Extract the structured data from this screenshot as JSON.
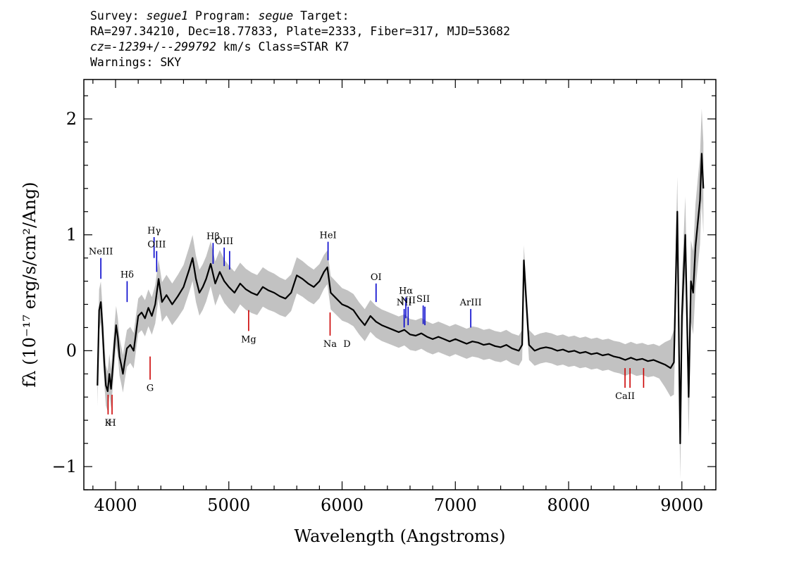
{
  "header": {
    "survey_label": "Survey:",
    "survey": "segue1",
    "program_label": "Program:",
    "program": "segue",
    "target_label": "Target:",
    "line2": "RA=297.34210, Dec=18.77833, Plate=2333, Fiber=317, MJD=53682",
    "cz_label": "cz=",
    "cz_value": "-1239",
    "cz_pm": "+/-",
    "cz_err": "-299792",
    "cz_units": " km/s Class=STAR K7",
    "warnings": "Warnings: SKY"
  },
  "chart_data": {
    "type": "line",
    "title": "",
    "xlabel": "Wavelength (Angstroms)",
    "ylabel": "fλ (10⁻¹⁷ erg/s/cm²/Ang)",
    "xlim": [
      3720,
      9300
    ],
    "ylim": [
      -1.2,
      2.34
    ],
    "x_ticks": [
      4000,
      5000,
      6000,
      7000,
      8000,
      9000
    ],
    "x_tick_labels": [
      "4000",
      "5000",
      "6000",
      "7000",
      "8000",
      "9000"
    ],
    "y_ticks": [
      -1,
      0,
      1,
      2
    ],
    "y_tick_labels": [
      "−1",
      "0",
      "1",
      "2"
    ],
    "grid": false,
    "series": [
      {
        "color": "#000000",
        "points": [
          [
            3840,
            -0.3
          ],
          [
            3855,
            0.35
          ],
          [
            3870,
            0.42
          ],
          [
            3885,
            0.2
          ],
          [
            3900,
            -0.1
          ],
          [
            3915,
            -0.3
          ],
          [
            3930,
            -0.35
          ],
          [
            3945,
            -0.2
          ],
          [
            3960,
            -0.33
          ],
          [
            3975,
            -0.15
          ],
          [
            3990,
            0.05
          ],
          [
            4005,
            0.22
          ],
          [
            4020,
            0.12
          ],
          [
            4035,
            -0.05
          ],
          [
            4050,
            -0.12
          ],
          [
            4065,
            -0.2
          ],
          [
            4080,
            -0.1
          ],
          [
            4100,
            0.02
          ],
          [
            4130,
            0.05
          ],
          [
            4160,
            0.0
          ],
          [
            4200,
            0.3
          ],
          [
            4230,
            0.33
          ],
          [
            4260,
            0.28
          ],
          [
            4290,
            0.37
          ],
          [
            4320,
            0.3
          ],
          [
            4350,
            0.4
          ],
          [
            4380,
            0.62
          ],
          [
            4410,
            0.42
          ],
          [
            4450,
            0.48
          ],
          [
            4500,
            0.4
          ],
          [
            4550,
            0.47
          ],
          [
            4600,
            0.55
          ],
          [
            4650,
            0.7
          ],
          [
            4680,
            0.8
          ],
          [
            4710,
            0.62
          ],
          [
            4740,
            0.5
          ],
          [
            4770,
            0.55
          ],
          [
            4800,
            0.62
          ],
          [
            4840,
            0.75
          ],
          [
            4880,
            0.58
          ],
          [
            4920,
            0.68
          ],
          [
            4960,
            0.6
          ],
          [
            5000,
            0.55
          ],
          [
            5050,
            0.5
          ],
          [
            5100,
            0.58
          ],
          [
            5150,
            0.53
          ],
          [
            5200,
            0.5
          ],
          [
            5250,
            0.48
          ],
          [
            5300,
            0.55
          ],
          [
            5350,
            0.52
          ],
          [
            5400,
            0.5
          ],
          [
            5450,
            0.47
          ],
          [
            5500,
            0.45
          ],
          [
            5550,
            0.5
          ],
          [
            5600,
            0.65
          ],
          [
            5650,
            0.62
          ],
          [
            5700,
            0.58
          ],
          [
            5750,
            0.55
          ],
          [
            5800,
            0.6
          ],
          [
            5840,
            0.68
          ],
          [
            5870,
            0.72
          ],
          [
            5900,
            0.5
          ],
          [
            5950,
            0.45
          ],
          [
            6000,
            0.4
          ],
          [
            6050,
            0.38
          ],
          [
            6100,
            0.35
          ],
          [
            6150,
            0.28
          ],
          [
            6200,
            0.22
          ],
          [
            6250,
            0.3
          ],
          [
            6300,
            0.25
          ],
          [
            6350,
            0.22
          ],
          [
            6400,
            0.2
          ],
          [
            6450,
            0.18
          ],
          [
            6500,
            0.16
          ],
          [
            6550,
            0.18
          ],
          [
            6600,
            0.14
          ],
          [
            6650,
            0.13
          ],
          [
            6700,
            0.15
          ],
          [
            6750,
            0.12
          ],
          [
            6800,
            0.1
          ],
          [
            6850,
            0.12
          ],
          [
            6900,
            0.1
          ],
          [
            6950,
            0.08
          ],
          [
            7000,
            0.1
          ],
          [
            7050,
            0.08
          ],
          [
            7100,
            0.06
          ],
          [
            7150,
            0.08
          ],
          [
            7200,
            0.07
          ],
          [
            7250,
            0.05
          ],
          [
            7300,
            0.06
          ],
          [
            7350,
            0.04
          ],
          [
            7400,
            0.03
          ],
          [
            7450,
            0.05
          ],
          [
            7500,
            0.02
          ],
          [
            7560,
            0.0
          ],
          [
            7590,
            0.05
          ],
          [
            7605,
            0.78
          ],
          [
            7625,
            0.45
          ],
          [
            7650,
            0.05
          ],
          [
            7700,
            0.0
          ],
          [
            7750,
            0.02
          ],
          [
            7800,
            0.03
          ],
          [
            7850,
            0.02
          ],
          [
            7900,
            0.0
          ],
          [
            7950,
            0.01
          ],
          [
            8000,
            -0.01
          ],
          [
            8050,
            0.0
          ],
          [
            8100,
            -0.02
          ],
          [
            8150,
            -0.01
          ],
          [
            8200,
            -0.03
          ],
          [
            8250,
            -0.02
          ],
          [
            8300,
            -0.04
          ],
          [
            8350,
            -0.03
          ],
          [
            8400,
            -0.05
          ],
          [
            8450,
            -0.06
          ],
          [
            8500,
            -0.08
          ],
          [
            8550,
            -0.06
          ],
          [
            8600,
            -0.08
          ],
          [
            8650,
            -0.07
          ],
          [
            8700,
            -0.09
          ],
          [
            8750,
            -0.08
          ],
          [
            8800,
            -0.1
          ],
          [
            8850,
            -0.12
          ],
          [
            8900,
            -0.15
          ],
          [
            8930,
            -0.1
          ],
          [
            8960,
            1.2
          ],
          [
            8985,
            -0.8
          ],
          [
            9000,
            0.3
          ],
          [
            9030,
            1.0
          ],
          [
            9060,
            -0.4
          ],
          [
            9080,
            0.6
          ],
          [
            9100,
            0.5
          ],
          [
            9120,
            0.9
          ],
          [
            9140,
            1.1
          ],
          [
            9160,
            1.3
          ],
          [
            9175,
            1.7
          ],
          [
            9190,
            1.4
          ]
        ]
      },
      {
        "color": "#c2c2c2",
        "band_halfwidth": [
          [
            3840,
            0.18
          ],
          [
            4200,
            0.15
          ],
          [
            4700,
            0.2
          ],
          [
            5500,
            0.16
          ],
          [
            6000,
            0.14
          ],
          [
            7000,
            0.13
          ],
          [
            8000,
            0.13
          ],
          [
            8800,
            0.14
          ],
          [
            8950,
            0.3
          ],
          [
            9200,
            0.4
          ]
        ]
      }
    ],
    "annotations": {
      "emission": [
        {
          "label": "NeIII",
          "x": 3870,
          "y1": 0.62,
          "y2": 0.8
        },
        {
          "label": "Hδ",
          "x": 4102,
          "y1": 0.42,
          "y2": 0.6
        },
        {
          "label": "Hγ",
          "x": 4340,
          "y1": 0.8,
          "y2": 0.98
        },
        {
          "label": "OIII",
          "x": 4363,
          "y1": 0.68,
          "y2": 0.86
        },
        {
          "label": "Hβ",
          "x": 4861,
          "y1": 0.75,
          "y2": 0.93
        },
        {
          "label": "OIII",
          "x": 4959,
          "y1": 0.73,
          "y2": 0.89
        },
        {
          "label": "",
          "x": 5007,
          "y1": 0.7,
          "y2": 0.86
        },
        {
          "label": "HeI",
          "x": 5876,
          "y1": 0.78,
          "y2": 0.94
        },
        {
          "label": "OI",
          "x": 6300,
          "y1": 0.42,
          "y2": 0.58
        },
        {
          "label": "NII",
          "x": 6548,
          "y1": 0.2,
          "y2": 0.36
        },
        {
          "label": "Hα",
          "x": 6563,
          "y1": 0.28,
          "y2": 0.46
        },
        {
          "label": "NII",
          "x": 6583,
          "y1": 0.22,
          "y2": 0.38
        },
        {
          "label": "SII",
          "x": 6716,
          "y1": 0.23,
          "y2": 0.39
        },
        {
          "label": "",
          "x": 6731,
          "y1": 0.22,
          "y2": 0.38
        },
        {
          "label": "ArIII",
          "x": 7136,
          "y1": 0.2,
          "y2": 0.36
        }
      ],
      "absorption": [
        {
          "label": "K",
          "x": 3934,
          "y1": -0.38,
          "y2": -0.55
        },
        {
          "label": "H",
          "x": 3969,
          "y1": -0.38,
          "y2": -0.55
        },
        {
          "label": "G",
          "x": 4305,
          "y1": -0.05,
          "y2": -0.25
        },
        {
          "label": "Mg",
          "x": 5175,
          "y1": 0.35,
          "y2": 0.17
        },
        {
          "label": "Na",
          "x": 5894,
          "y1": 0.33,
          "y2": 0.13
        },
        {
          "label": "CaII",
          "x": 8498,
          "y1": -0.15,
          "y2": -0.32
        },
        {
          "label": "",
          "x": 8542,
          "y1": -0.15,
          "y2": -0.32
        },
        {
          "label": "",
          "x": 8662,
          "y1": -0.15,
          "y2": -0.32
        }
      ],
      "na_d_suffix": "D"
    }
  },
  "colors": {
    "flux": "#000000",
    "error_band": "#c2c2c2",
    "emission": "#0000cc",
    "absorption": "#cc0000"
  }
}
